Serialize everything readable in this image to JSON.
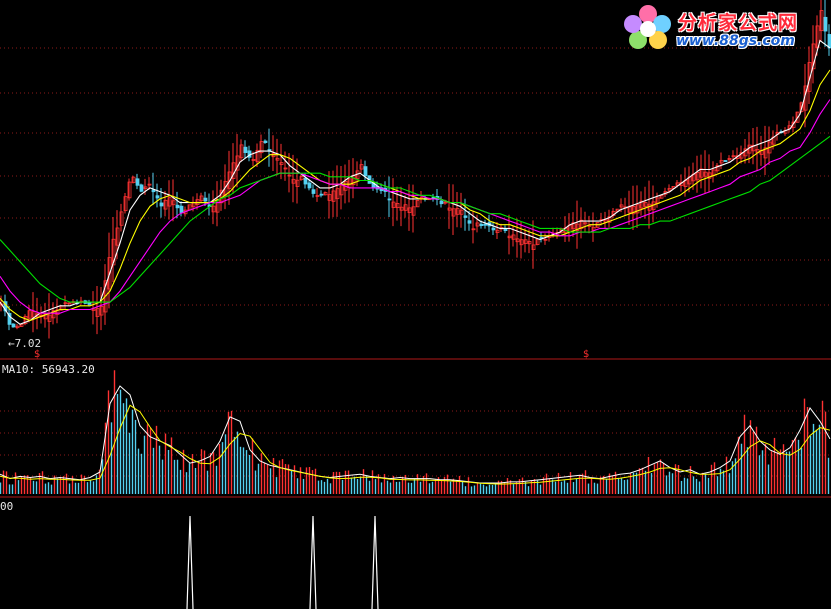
{
  "logo": {
    "title": "分析家公式网",
    "url": "www.88gs.com"
  },
  "labels": {
    "low_price": "7.02",
    "ma10": "MA10: 56943.20",
    "indicator": "00",
    "signal": "$"
  },
  "colors": {
    "background": "#000000",
    "grid": "#8b1a1a",
    "up": "#ff3232",
    "down": "#54d0f0",
    "ma_short": "#ffffff",
    "ma_mid": "#ffff00",
    "ma_60": "#ff00ff",
    "ma_120": "#00e000"
  },
  "chart_data": [
    {
      "type": "candlestick",
      "panel": "price",
      "x": [
        0,
        10,
        20,
        30,
        40,
        50,
        60,
        70,
        80,
        90,
        100,
        110,
        120,
        130,
        140,
        150,
        160,
        170,
        180,
        190,
        200,
        210,
        220,
        230,
        240,
        250,
        260,
        270,
        280,
        290,
        300,
        310,
        320,
        330,
        340,
        350,
        360,
        370,
        380,
        390,
        400,
        410,
        420,
        430,
        440,
        450,
        460,
        470,
        480,
        490,
        500,
        510,
        520,
        530,
        540,
        550,
        560,
        570,
        580,
        590,
        600,
        610,
        620,
        630,
        640,
        650,
        660,
        670,
        680,
        690,
        700,
        710,
        720,
        730,
        740,
        750,
        760,
        770,
        780,
        790,
        800,
        810,
        820,
        830
      ],
      "close": [
        7.9,
        7.2,
        7.3,
        7.8,
        7.6,
        7.7,
        7.8,
        7.9,
        7.9,
        7.8,
        7.9,
        9.6,
        10.3,
        11.4,
        10.9,
        11.1,
        10.6,
        10.9,
        10.3,
        10.6,
        10.8,
        10.5,
        11.0,
        11.7,
        12.2,
        11.7,
        12.3,
        12.1,
        11.8,
        11.4,
        11.3,
        10.9,
        10.8,
        11.0,
        11.2,
        11.4,
        11.6,
        11.0,
        10.9,
        10.8,
        10.6,
        10.6,
        10.7,
        10.7,
        10.6,
        10.6,
        10.5,
        10.0,
        10.0,
        9.9,
        9.9,
        9.8,
        9.7,
        9.6,
        9.6,
        9.7,
        9.9,
        10.1,
        10.2,
        10.0,
        10.1,
        10.3,
        10.5,
        10.6,
        10.7,
        10.7,
        10.8,
        11.0,
        11.2,
        11.4,
        11.6,
        11.5,
        11.7,
        11.8,
        12.0,
        12.3,
        12.1,
        12.4,
        12.5,
        12.7,
        13.3,
        14.8,
        15.9,
        14.6
      ],
      "ylim": [
        6.6,
        16.1
      ],
      "low_label": 7.02
    },
    {
      "type": "line",
      "panel": "price",
      "series": [
        {
          "values": [
            7.9,
            7.5,
            7.3,
            7.4,
            7.6,
            7.7,
            7.8,
            7.8,
            7.9,
            7.9,
            7.9,
            8.7,
            9.5,
            10.4,
            10.8,
            11.0,
            10.9,
            10.8,
            10.6,
            10.6,
            10.6,
            10.6,
            10.8,
            11.2,
            11.7,
            11.9,
            12.0,
            12.0,
            11.9,
            11.6,
            11.4,
            11.2,
            11.0,
            11.0,
            11.1,
            11.3,
            11.4,
            11.2,
            11.0,
            10.9,
            10.8,
            10.7,
            10.7,
            10.7,
            10.7,
            10.6,
            10.5,
            10.3,
            10.1,
            10.0,
            9.9,
            9.9,
            9.8,
            9.7,
            9.6,
            9.7,
            9.8,
            10.0,
            10.1,
            10.1,
            10.1,
            10.2,
            10.4,
            10.5,
            10.6,
            10.7,
            10.8,
            10.9,
            11.1,
            11.3,
            11.5,
            11.5,
            11.6,
            11.7,
            11.9,
            12.1,
            12.2,
            12.3,
            12.5,
            12.6,
            13.0,
            14.0,
            15.0,
            14.8
          ]
        },
        {
          "values": [
            8.0,
            7.7,
            7.5,
            7.4,
            7.5,
            7.6,
            7.7,
            7.7,
            7.8,
            7.8,
            7.9,
            8.2,
            8.8,
            9.5,
            10.1,
            10.5,
            10.7,
            10.8,
            10.7,
            10.6,
            10.6,
            10.6,
            10.7,
            10.9,
            11.2,
            11.5,
            11.7,
            11.9,
            11.9,
            11.8,
            11.6,
            11.4,
            11.2,
            11.1,
            11.1,
            11.1,
            11.2,
            11.2,
            11.1,
            11.0,
            10.9,
            10.8,
            10.7,
            10.7,
            10.7,
            10.6,
            10.6,
            10.4,
            10.3,
            10.1,
            10.0,
            10.0,
            9.9,
            9.8,
            9.7,
            9.7,
            9.7,
            9.8,
            9.9,
            10.0,
            10.0,
            10.1,
            10.2,
            10.3,
            10.4,
            10.5,
            10.6,
            10.7,
            10.8,
            11.0,
            11.2,
            11.3,
            11.4,
            11.5,
            11.7,
            11.8,
            12.0,
            12.1,
            12.2,
            12.4,
            12.6,
            13.1,
            13.8,
            14.2
          ]
        },
        {
          "values": [
            8.6,
            8.2,
            7.9,
            7.7,
            7.6,
            7.6,
            7.6,
            7.7,
            7.7,
            7.7,
            7.8,
            7.9,
            8.2,
            8.6,
            9.0,
            9.4,
            9.8,
            10.1,
            10.3,
            10.4,
            10.5,
            10.6,
            10.6,
            10.7,
            10.8,
            11.0,
            11.2,
            11.3,
            11.4,
            11.4,
            11.4,
            11.3,
            11.2,
            11.1,
            11.1,
            11.0,
            11.0,
            11.0,
            11.0,
            10.9,
            10.9,
            10.8,
            10.8,
            10.7,
            10.7,
            10.6,
            10.6,
            10.5,
            10.4,
            10.3,
            10.2,
            10.1,
            10.0,
            9.9,
            9.8,
            9.8,
            9.7,
            9.7,
            9.8,
            9.8,
            9.9,
            9.9,
            10.0,
            10.1,
            10.2,
            10.3,
            10.4,
            10.5,
            10.6,
            10.7,
            10.8,
            10.9,
            11.0,
            11.1,
            11.3,
            11.4,
            11.5,
            11.7,
            11.8,
            12.0,
            12.1,
            12.5,
            13.0,
            13.4
          ]
        },
        {
          "values": [
            9.6,
            9.3,
            9.0,
            8.7,
            8.4,
            8.2,
            8.0,
            7.9,
            7.9,
            7.9,
            7.9,
            7.9,
            8.1,
            8.3,
            8.6,
            8.9,
            9.2,
            9.5,
            9.8,
            10.1,
            10.3,
            10.5,
            10.7,
            10.8,
            11.0,
            11.1,
            11.2,
            11.3,
            11.4,
            11.4,
            11.4,
            11.4,
            11.4,
            11.3,
            11.3,
            11.3,
            11.2,
            11.2,
            11.1,
            11.0,
            11.0,
            10.9,
            10.8,
            10.8,
            10.7,
            10.6,
            10.6,
            10.5,
            10.4,
            10.3,
            10.3,
            10.2,
            10.1,
            10.0,
            9.9,
            9.9,
            9.9,
            9.8,
            9.8,
            9.8,
            9.8,
            9.9,
            9.9,
            9.9,
            10.0,
            10.0,
            10.1,
            10.1,
            10.2,
            10.3,
            10.4,
            10.5,
            10.6,
            10.7,
            10.8,
            10.9,
            11.1,
            11.2,
            11.4,
            11.6,
            11.8,
            12.0,
            12.2,
            12.4
          ]
        }
      ]
    },
    {
      "type": "bar",
      "panel": "volume",
      "x": [
        0,
        10,
        20,
        30,
        40,
        50,
        60,
        70,
        80,
        90,
        100,
        110,
        120,
        130,
        140,
        150,
        160,
        170,
        180,
        190,
        200,
        210,
        220,
        230,
        240,
        250,
        260,
        270,
        280,
        290,
        300,
        310,
        320,
        330,
        340,
        350,
        360,
        370,
        380,
        390,
        400,
        410,
        420,
        430,
        440,
        450,
        460,
        470,
        480,
        490,
        500,
        510,
        520,
        530,
        540,
        550,
        560,
        570,
        580,
        590,
        600,
        610,
        620,
        630,
        640,
        650,
        660,
        670,
        680,
        690,
        700,
        710,
        720,
        730,
        740,
        750,
        760,
        770,
        780,
        790,
        800,
        810,
        820,
        830
      ],
      "values": [
        18,
        14,
        16,
        15,
        16,
        14,
        15,
        14,
        13,
        15,
        20,
        82,
        98,
        90,
        62,
        52,
        48,
        44,
        36,
        28,
        30,
        34,
        48,
        70,
        66,
        40,
        30,
        26,
        24,
        22,
        20,
        18,
        16,
        15,
        16,
        17,
        18,
        16,
        15,
        14,
        15,
        14,
        14,
        14,
        13,
        13,
        12,
        11,
        10,
        10,
        10,
        11,
        11,
        12,
        13,
        14,
        15,
        16,
        17,
        15,
        14,
        16,
        18,
        19,
        22,
        26,
        30,
        24,
        20,
        22,
        18,
        20,
        24,
        30,
        52,
        62,
        48,
        40,
        36,
        42,
        58,
        78,
        66,
        50
      ],
      "ma10_label": 56943.2
    },
    {
      "type": "line",
      "panel": "indicator",
      "spikes_x": [
        190,
        313,
        375
      ],
      "values": [
        1,
        1,
        1
      ],
      "label": "00"
    }
  ]
}
